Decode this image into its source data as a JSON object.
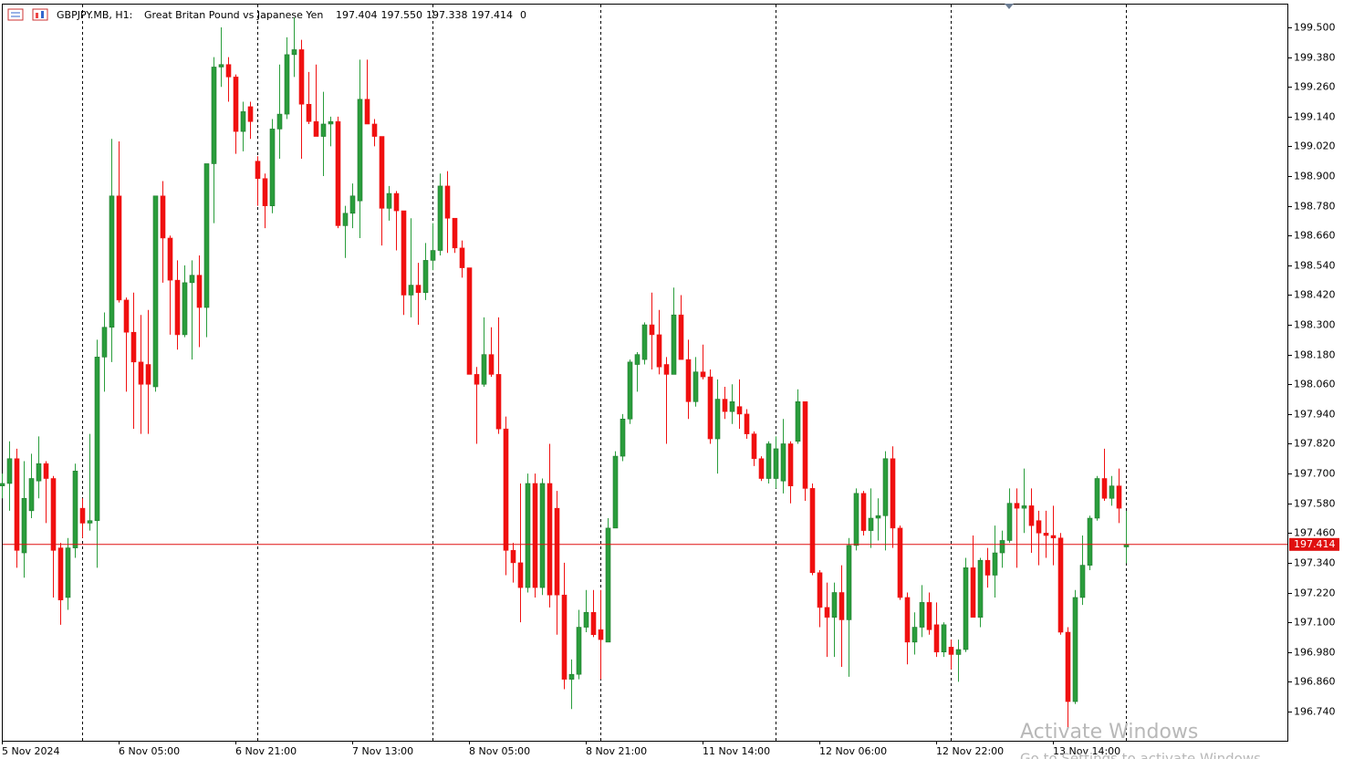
{
  "header": {
    "symbol": "GBPJPY.MB, H1:",
    "description": "Great Britan Pound vs Japanese Yen",
    "quote": [
      "197.404",
      "197.550",
      "197.338",
      "197.414",
      "0"
    ]
  },
  "watermark": {
    "line1": "Activate Windows",
    "line2": "Go to Settings to activate Windows"
  },
  "chart_data": {
    "type": "candlestick",
    "up_color": "#2a9d3c",
    "down_color": "#f01010",
    "grid": false,
    "current_price": {
      "value": 197.414,
      "label": "197.414"
    },
    "current_color": "#e01010",
    "ylim": [
      196.622,
      199.592
    ],
    "yticks": [
      {
        "value": 199.5,
        "label": "199.500"
      },
      {
        "value": 199.38,
        "label": "199.380"
      },
      {
        "value": 199.26,
        "label": "199.260"
      },
      {
        "value": 199.14,
        "label": "199.140"
      },
      {
        "value": 199.02,
        "label": "199.020"
      },
      {
        "value": 198.9,
        "label": "198.900"
      },
      {
        "value": 198.78,
        "label": "198.780"
      },
      {
        "value": 198.66,
        "label": "198.660"
      },
      {
        "value": 198.54,
        "label": "198.540"
      },
      {
        "value": 198.42,
        "label": "198.420"
      },
      {
        "value": 198.3,
        "label": "198.300"
      },
      {
        "value": 198.18,
        "label": "198.180"
      },
      {
        "value": 198.06,
        "label": "198.060"
      },
      {
        "value": 197.94,
        "label": "197.940"
      },
      {
        "value": 197.82,
        "label": "197.820"
      },
      {
        "value": 197.7,
        "label": "197.700"
      },
      {
        "value": 197.58,
        "label": "197.580"
      },
      {
        "value": 197.46,
        "label": "197.460"
      },
      {
        "value": 197.34,
        "label": "197.340"
      },
      {
        "value": 197.22,
        "label": "197.220"
      },
      {
        "value": 197.1,
        "label": "197.100"
      },
      {
        "value": 196.98,
        "label": "196.980"
      },
      {
        "value": 196.86,
        "label": "196.860"
      },
      {
        "value": 196.74,
        "label": "196.740"
      }
    ],
    "categories": [
      "5 Nov 2024",
      null,
      null,
      null,
      null,
      null,
      null,
      null,
      null,
      null,
      null,
      null,
      null,
      null,
      null,
      null,
      "6 Nov 05:00",
      null,
      null,
      null,
      null,
      null,
      null,
      null,
      null,
      null,
      null,
      null,
      null,
      null,
      null,
      null,
      "6 Nov 21:00",
      null,
      null,
      null,
      null,
      null,
      null,
      null,
      null,
      null,
      null,
      null,
      null,
      null,
      null,
      null,
      "7 Nov 13:00",
      null,
      null,
      null,
      null,
      null,
      null,
      null,
      null,
      null,
      null,
      null,
      null,
      null,
      null,
      null,
      "8 Nov 05:00",
      null,
      null,
      null,
      null,
      null,
      null,
      null,
      null,
      null,
      null,
      null,
      null,
      null,
      null,
      null,
      "8 Nov 21:00",
      null,
      null,
      null,
      null,
      null,
      null,
      null,
      null,
      null,
      null,
      null,
      null,
      null,
      null,
      null,
      "11 Nov 14:00",
      null,
      null,
      null,
      null,
      null,
      null,
      null,
      null,
      null,
      null,
      null,
      null,
      null,
      null,
      null,
      "12 Nov 06:00",
      null,
      null,
      null,
      null,
      null,
      null,
      null,
      null,
      null,
      null,
      null,
      null,
      null,
      null,
      null,
      "12 Nov 22:00",
      null,
      null,
      null,
      null,
      null,
      null,
      null,
      null,
      null,
      null,
      null,
      null,
      null,
      null,
      null,
      "13 Nov 14:00",
      null,
      null,
      null,
      null,
      null,
      null,
      null,
      null,
      null,
      null
    ],
    "values": [
      [
        197.65,
        197.7,
        197.6,
        197.66
      ],
      [
        197.66,
        197.83,
        197.55,
        197.76
      ],
      [
        197.76,
        197.8,
        197.32,
        197.39
      ],
      [
        197.38,
        197.75,
        197.28,
        197.6
      ],
      [
        197.55,
        197.78,
        197.52,
        197.68
      ],
      [
        197.67,
        197.85,
        197.6,
        197.74
      ],
      [
        197.74,
        197.75,
        197.5,
        197.68
      ],
      [
        197.68,
        197.69,
        197.2,
        197.39
      ],
      [
        197.4,
        197.42,
        197.09,
        197.19
      ],
      [
        197.2,
        197.44,
        197.15,
        197.4
      ],
      [
        197.4,
        197.74,
        197.36,
        197.71
      ],
      [
        197.56,
        197.6,
        197.44,
        197.5
      ],
      [
        197.5,
        197.86,
        197.47,
        197.51
      ],
      [
        197.51,
        198.24,
        197.32,
        198.17
      ],
      [
        198.17,
        198.35,
        198.03,
        198.29
      ],
      [
        198.29,
        199.05,
        198.15,
        198.82
      ],
      [
        198.82,
        199.04,
        198.39,
        198.4
      ],
      [
        198.4,
        198.41,
        198.03,
        198.27
      ],
      [
        198.27,
        198.43,
        197.88,
        198.15
      ],
      [
        198.15,
        198.34,
        197.86,
        198.06
      ],
      [
        198.14,
        198.36,
        197.86,
        198.06
      ],
      [
        198.05,
        198.82,
        198.03,
        198.82
      ],
      [
        198.82,
        198.88,
        198.47,
        198.65
      ],
      [
        198.65,
        198.66,
        198.26,
        198.48
      ],
      [
        198.48,
        198.56,
        198.2,
        198.26
      ],
      [
        198.26,
        198.54,
        198.25,
        198.47
      ],
      [
        198.47,
        198.56,
        198.16,
        198.5
      ],
      [
        198.5,
        198.58,
        198.21,
        198.37
      ],
      [
        198.37,
        198.95,
        198.25,
        198.95
      ],
      [
        198.95,
        199.38,
        198.71,
        199.34
      ],
      [
        199.34,
        199.5,
        199.26,
        199.35
      ],
      [
        199.35,
        199.38,
        199.2,
        199.3
      ],
      [
        199.3,
        199.31,
        198.99,
        199.08
      ],
      [
        199.08,
        199.2,
        199.0,
        199.16
      ],
      [
        199.18,
        199.2,
        199.05,
        199.12
      ],
      [
        198.96,
        198.98,
        198.78,
        198.89
      ],
      [
        198.89,
        198.91,
        198.69,
        198.78
      ],
      [
        198.78,
        199.13,
        198.75,
        199.09
      ],
      [
        199.09,
        199.35,
        198.97,
        199.15
      ],
      [
        199.15,
        199.46,
        199.13,
        199.39
      ],
      [
        199.39,
        199.54,
        199.3,
        199.41
      ],
      [
        199.41,
        199.45,
        198.97,
        199.19
      ],
      [
        199.19,
        199.32,
        199.11,
        199.12
      ],
      [
        199.12,
        199.35,
        199.06,
        199.06
      ],
      [
        199.06,
        199.24,
        198.9,
        199.11
      ],
      [
        199.11,
        199.14,
        199.02,
        199.12
      ],
      [
        199.12,
        199.14,
        198.69,
        198.7
      ],
      [
        198.7,
        198.78,
        198.57,
        198.75
      ],
      [
        198.75,
        198.87,
        198.69,
        198.82
      ],
      [
        198.8,
        199.37,
        198.65,
        199.21
      ],
      [
        199.21,
        199.37,
        199.11,
        199.11
      ],
      [
        199.11,
        199.13,
        199.02,
        199.06
      ],
      [
        199.06,
        199.06,
        198.62,
        198.77
      ],
      [
        198.77,
        198.86,
        198.72,
        198.83
      ],
      [
        198.83,
        198.84,
        198.6,
        198.76
      ],
      [
        198.76,
        198.76,
        198.34,
        198.42
      ],
      [
        198.42,
        198.73,
        198.33,
        198.46
      ],
      [
        198.46,
        198.55,
        198.3,
        198.43
      ],
      [
        198.43,
        198.63,
        198.4,
        198.56
      ],
      [
        198.56,
        198.71,
        198.52,
        198.6
      ],
      [
        198.6,
        198.91,
        198.58,
        198.86
      ],
      [
        198.86,
        198.92,
        198.59,
        198.73
      ],
      [
        198.73,
        198.73,
        198.59,
        198.61
      ],
      [
        198.61,
        198.64,
        198.49,
        198.53
      ],
      [
        198.53,
        198.53,
        198.1,
        198.1
      ],
      [
        198.1,
        198.13,
        197.82,
        198.06
      ],
      [
        198.06,
        198.33,
        198.05,
        198.18
      ],
      [
        198.18,
        198.29,
        198.09,
        198.1
      ],
      [
        198.1,
        198.33,
        197.86,
        197.88
      ],
      [
        197.88,
        197.93,
        197.29,
        197.39
      ],
      [
        197.39,
        197.42,
        197.26,
        197.34
      ],
      [
        197.34,
        197.66,
        197.1,
        197.24
      ],
      [
        197.24,
        197.7,
        197.22,
        197.66
      ],
      [
        197.66,
        197.7,
        197.2,
        197.24
      ],
      [
        197.24,
        197.68,
        197.21,
        197.66
      ],
      [
        197.66,
        197.82,
        197.16,
        197.21
      ],
      [
        197.56,
        197.63,
        197.05,
        197.21
      ],
      [
        197.21,
        197.34,
        196.83,
        196.87
      ],
      [
        196.87,
        196.95,
        196.75,
        196.89
      ],
      [
        196.89,
        197.15,
        196.87,
        197.08
      ],
      [
        197.08,
        197.23,
        197.06,
        197.14
      ],
      [
        197.14,
        197.23,
        197.04,
        197.05
      ],
      [
        197.07,
        197.23,
        196.87,
        197.03
      ],
      [
        197.02,
        197.52,
        197.02,
        197.48
      ],
      [
        197.48,
        197.79,
        197.48,
        197.77
      ],
      [
        197.77,
        197.94,
        197.75,
        197.92
      ],
      [
        197.92,
        198.16,
        197.9,
        198.15
      ],
      [
        198.14,
        198.19,
        198.03,
        198.18
      ],
      [
        198.16,
        198.31,
        198.14,
        198.3
      ],
      [
        198.3,
        198.43,
        198.12,
        198.26
      ],
      [
        198.26,
        198.36,
        198.1,
        198.13
      ],
      [
        198.14,
        198.17,
        197.82,
        198.1
      ],
      [
        198.1,
        198.45,
        198.1,
        198.34
      ],
      [
        198.34,
        198.42,
        198.16,
        198.16
      ],
      [
        198.16,
        198.24,
        197.92,
        197.99
      ],
      [
        197.99,
        198.17,
        197.97,
        198.11
      ],
      [
        198.11,
        198.22,
        198.08,
        198.09
      ],
      [
        198.09,
        198.12,
        197.82,
        197.84
      ],
      [
        197.84,
        198.08,
        197.7,
        198.0
      ],
      [
        198.0,
        198.05,
        197.92,
        197.95
      ],
      [
        197.95,
        198.06,
        197.9,
        197.99
      ],
      [
        197.97,
        198.08,
        197.88,
        197.94
      ],
      [
        197.94,
        197.96,
        197.84,
        197.86
      ],
      [
        197.86,
        197.87,
        197.73,
        197.76
      ],
      [
        197.76,
        197.77,
        197.67,
        197.68
      ],
      [
        197.68,
        197.83,
        197.66,
        197.82
      ],
      [
        197.68,
        197.85,
        197.64,
        197.8
      ],
      [
        197.67,
        197.92,
        197.62,
        197.82
      ],
      [
        197.82,
        197.83,
        197.58,
        197.65
      ],
      [
        197.83,
        198.04,
        197.82,
        197.99
      ],
      [
        197.99,
        197.99,
        197.59,
        197.64
      ],
      [
        197.64,
        197.66,
        197.29,
        197.3
      ],
      [
        197.3,
        197.31,
        197.08,
        197.16
      ],
      [
        197.16,
        197.26,
        196.96,
        197.12
      ],
      [
        197.12,
        197.26,
        196.96,
        197.22
      ],
      [
        197.22,
        197.33,
        196.92,
        197.11
      ],
      [
        197.11,
        197.44,
        196.88,
        197.41
      ],
      [
        197.41,
        197.64,
        197.39,
        197.62
      ],
      [
        197.62,
        197.63,
        197.45,
        197.47
      ],
      [
        197.47,
        197.64,
        197.4,
        197.52
      ],
      [
        197.52,
        197.6,
        197.43,
        197.53
      ],
      [
        197.53,
        197.79,
        197.39,
        197.76
      ],
      [
        197.76,
        197.81,
        197.4,
        197.48
      ],
      [
        197.48,
        197.49,
        197.19,
        197.2
      ],
      [
        197.2,
        197.22,
        196.93,
        197.02
      ],
      [
        197.02,
        197.14,
        196.97,
        197.08
      ],
      [
        197.08,
        197.25,
        197.04,
        197.18
      ],
      [
        197.18,
        197.22,
        197.05,
        197.07
      ],
      [
        197.09,
        197.18,
        196.96,
        196.98
      ],
      [
        196.98,
        197.1,
        196.96,
        197.09
      ],
      [
        197.0,
        197.03,
        196.91,
        196.97
      ],
      [
        196.97,
        197.03,
        196.86,
        196.99
      ],
      [
        196.99,
        197.36,
        196.98,
        197.32
      ],
      [
        197.32,
        197.45,
        197.12,
        197.12
      ],
      [
        197.12,
        197.36,
        197.08,
        197.35
      ],
      [
        197.35,
        197.4,
        197.24,
        197.29
      ],
      [
        197.29,
        197.49,
        197.2,
        197.38
      ],
      [
        197.38,
        197.47,
        197.32,
        197.43
      ],
      [
        197.43,
        197.64,
        197.42,
        197.58
      ],
      [
        197.58,
        197.64,
        197.32,
        197.56
      ],
      [
        197.56,
        197.72,
        197.46,
        197.57
      ],
      [
        197.57,
        197.64,
        197.38,
        197.49
      ],
      [
        197.51,
        197.55,
        197.33,
        197.46
      ],
      [
        197.46,
        197.55,
        197.36,
        197.45
      ],
      [
        197.45,
        197.57,
        197.33,
        197.44
      ],
      [
        197.44,
        197.46,
        197.05,
        197.06
      ],
      [
        197.06,
        197.08,
        196.67,
        196.78
      ],
      [
        196.78,
        197.23,
        196.77,
        197.2
      ],
      [
        197.2,
        197.45,
        197.17,
        197.33
      ],
      [
        197.33,
        197.53,
        197.31,
        197.52
      ],
      [
        197.52,
        197.69,
        197.51,
        197.68
      ],
      [
        197.68,
        197.8,
        197.59,
        197.6
      ],
      [
        197.6,
        197.69,
        197.57,
        197.65
      ],
      [
        197.65,
        197.72,
        197.5,
        197.56
      ],
      [
        197.404,
        197.55,
        197.338,
        197.414
      ]
    ]
  }
}
